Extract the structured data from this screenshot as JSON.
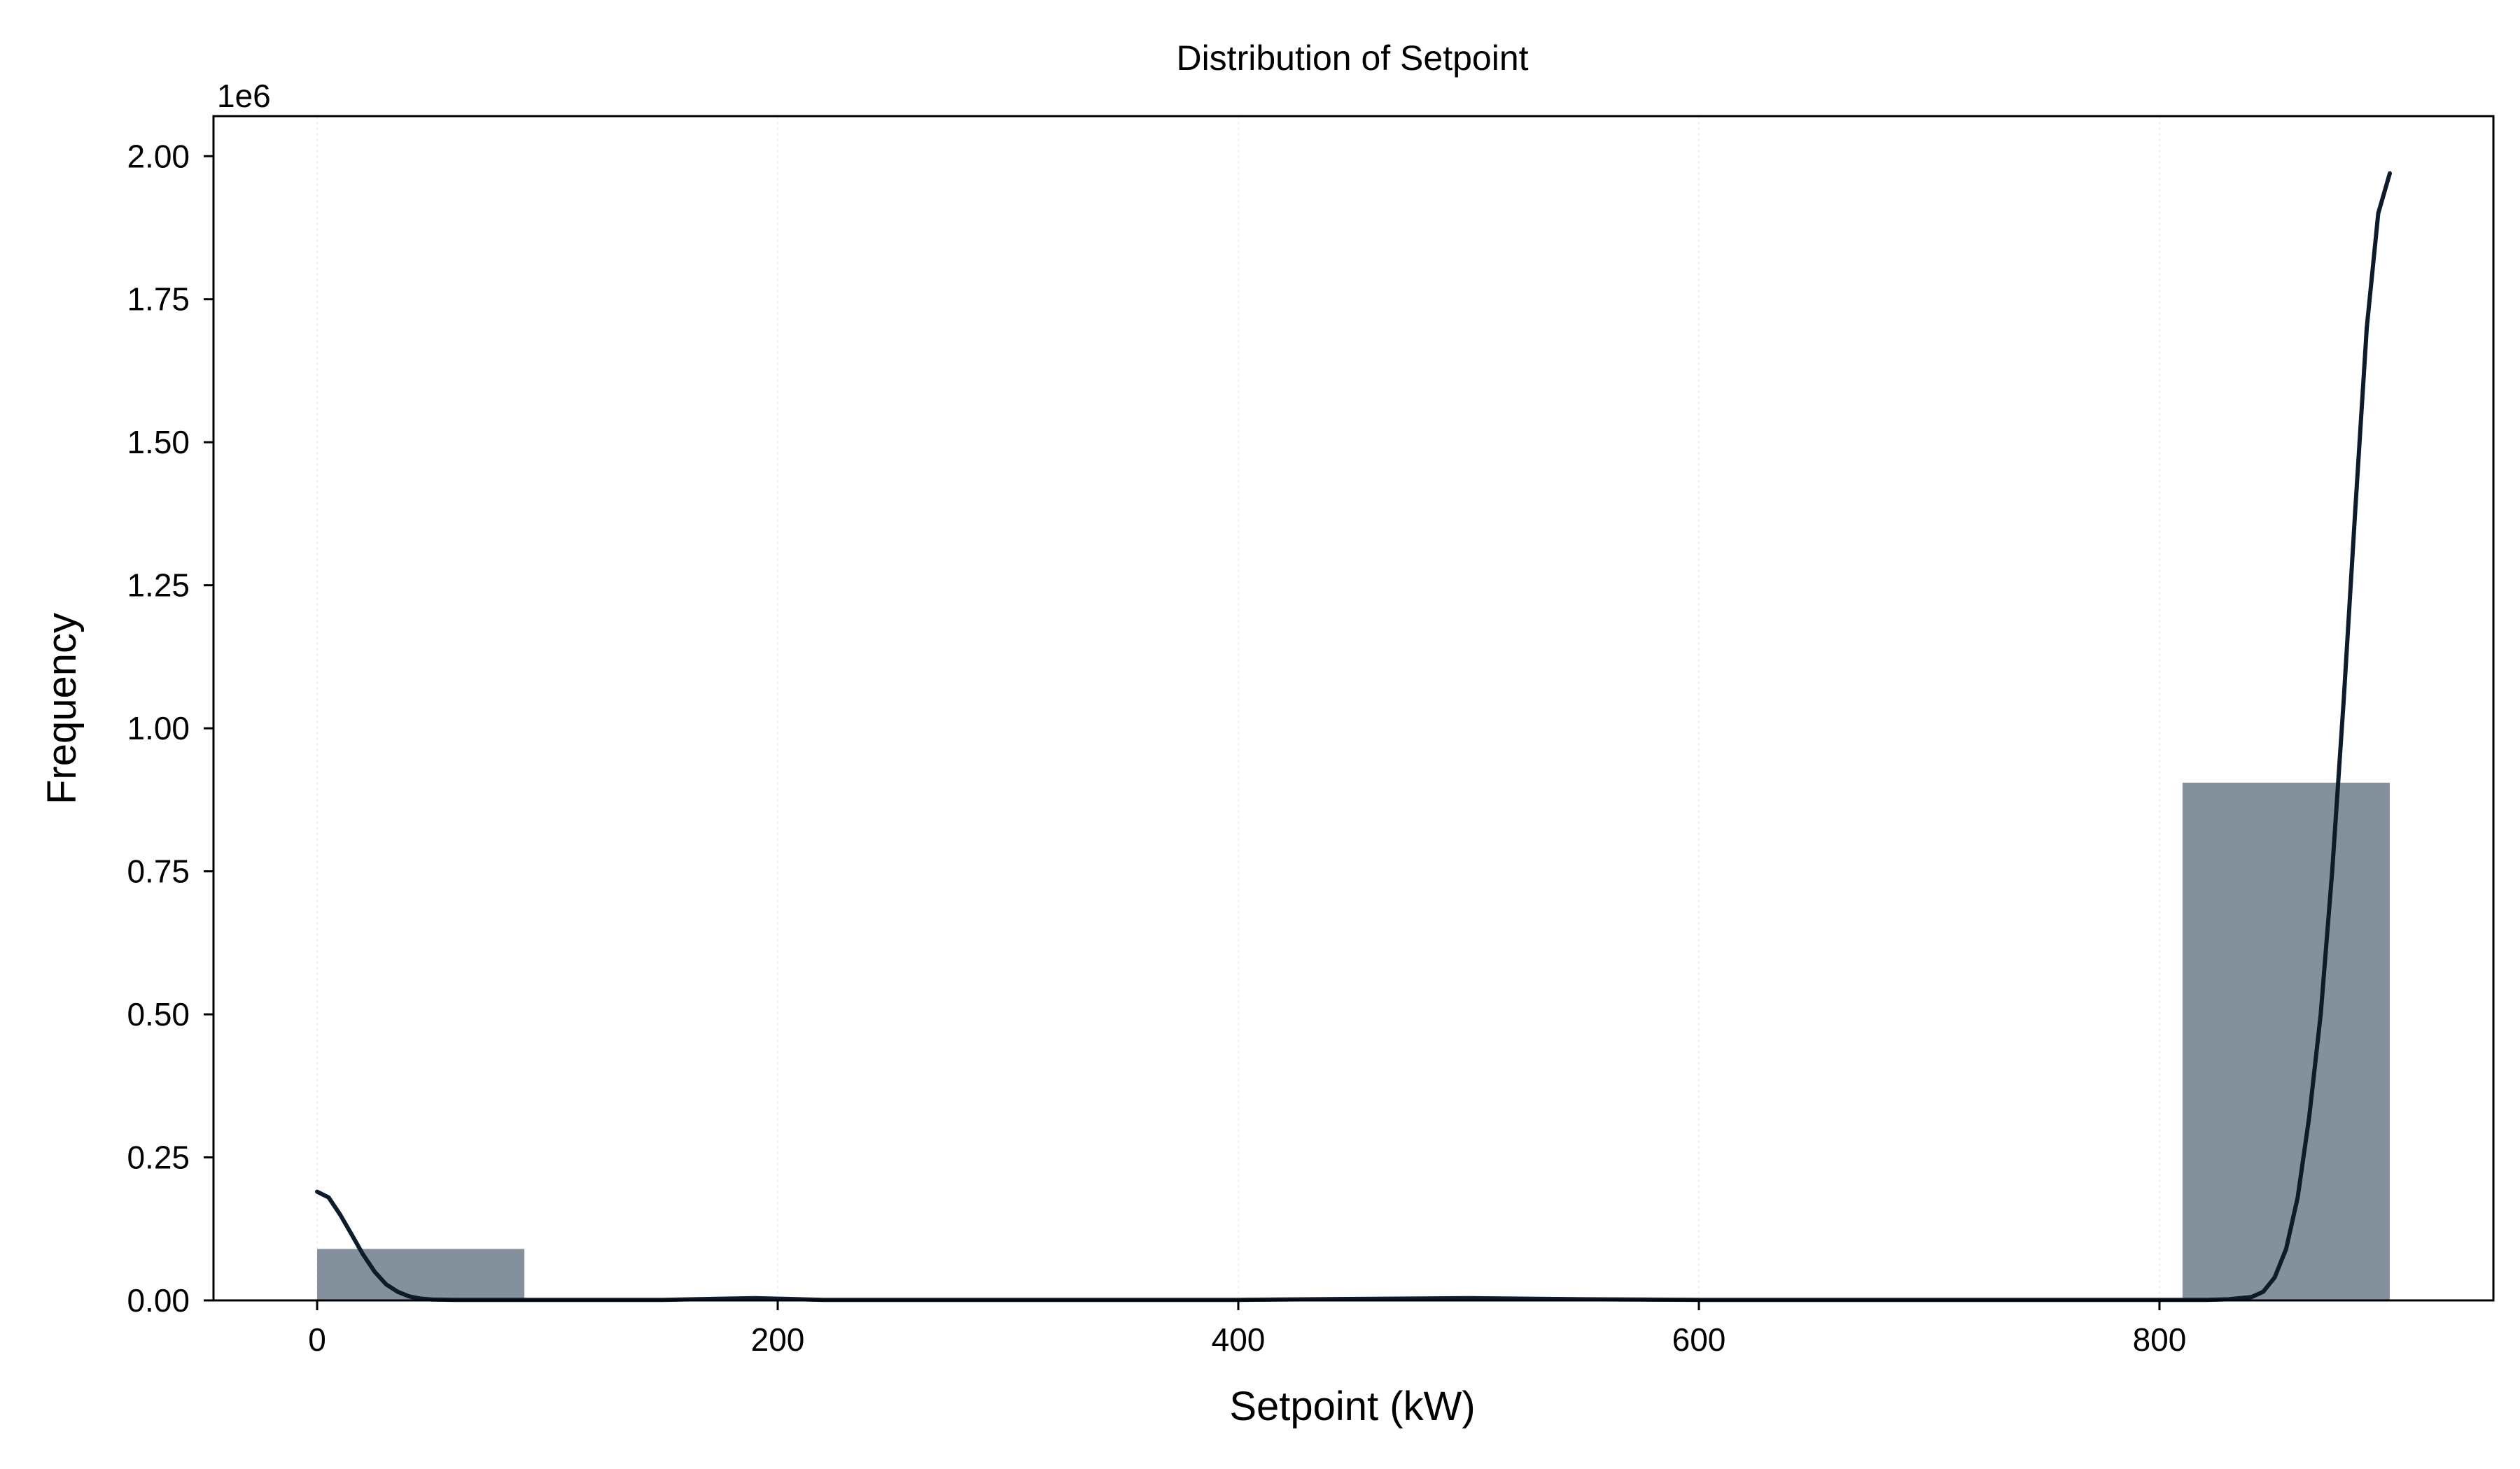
{
  "chart_data": {
    "type": "bar",
    "title": "Distribution of Setpoint",
    "xlabel": "Setpoint (kW)",
    "ylabel": "Frequency",
    "y_offset_label": "1e6",
    "xlim": [
      -45,
      945
    ],
    "ylim": [
      0,
      2.07
    ],
    "x_ticks": [
      0,
      200,
      400,
      600,
      800
    ],
    "x_tick_labels": [
      "0",
      "200",
      "400",
      "600",
      "800"
    ],
    "y_ticks": [
      0,
      0.25,
      0.5,
      0.75,
      1.0,
      1.25,
      1.5,
      1.75,
      2.0
    ],
    "y_tick_labels": [
      "0.00",
      "0.25",
      "0.50",
      "0.75",
      "1.00",
      "1.25",
      "1.50",
      "1.75",
      "2.00"
    ],
    "grid": true,
    "bar_color": "#84909b",
    "line_color": "#0d1b2a",
    "bins": [
      {
        "x0": 0,
        "x1": 90,
        "value": 0.09
      },
      {
        "x0": 810,
        "x1": 900,
        "value": 0.905
      }
    ],
    "kde": {
      "x": [
        0,
        5,
        10,
        15,
        20,
        25,
        30,
        35,
        40,
        45,
        50,
        60,
        80,
        100,
        150,
        190,
        220,
        300,
        400,
        500,
        550,
        600,
        700,
        800,
        820,
        830,
        840,
        845,
        850,
        855,
        860,
        865,
        870,
        875,
        880,
        885,
        890,
        895,
        900
      ],
      "y": [
        0.19,
        0.18,
        0.15,
        0.115,
        0.08,
        0.05,
        0.028,
        0.015,
        0.007,
        0.003,
        0.0015,
        0.001,
        0.001,
        0.001,
        0.001,
        0.004,
        0.001,
        0.001,
        0.001,
        0.004,
        0.002,
        0.001,
        0.001,
        0.001,
        0.001,
        0.002,
        0.006,
        0.015,
        0.04,
        0.09,
        0.18,
        0.32,
        0.5,
        0.75,
        1.05,
        1.38,
        1.7,
        1.9,
        1.97
      ]
    }
  }
}
